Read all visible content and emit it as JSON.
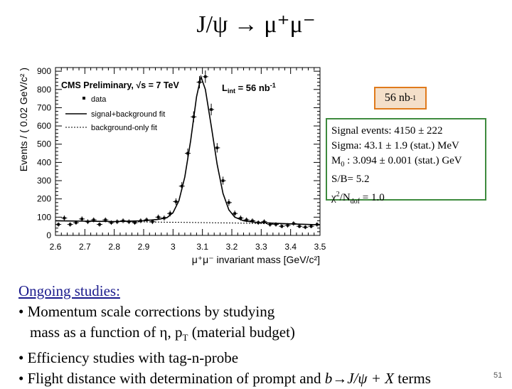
{
  "slide": {
    "title": "J/ψ → μ⁺μ⁻",
    "page_number": "51"
  },
  "chart_data": {
    "type": "scatter",
    "title": "CMS Preliminary, √s = 7 TeV",
    "luminosity_label": "L",
    "luminosity_sub": "int",
    "luminosity_value": " = 56 nb",
    "luminosity_sup": "-1",
    "xlabel": "μ⁺μ⁻ invariant mass [GeV/c²]",
    "ylabel": "Events / ( 0.02 GeV/c² )",
    "xlim": [
      2.6,
      3.5
    ],
    "ylim": [
      0,
      920
    ],
    "x_ticks": [
      2.6,
      2.7,
      2.8,
      2.9,
      3,
      3.1,
      3.2,
      3.3,
      3.4,
      3.5
    ],
    "x_tick_labels": [
      "2.6",
      "2.7",
      "2.8",
      "2.9",
      "3",
      "3.1",
      "3.2",
      "3.3",
      "3.4",
      "3.5"
    ],
    "y_ticks": [
      0,
      100,
      200,
      300,
      400,
      500,
      600,
      700,
      800,
      900
    ],
    "y_tick_labels": [
      "0",
      "100",
      "200",
      "300",
      "400",
      "500",
      "600",
      "700",
      "800",
      "900"
    ],
    "legend": {
      "placement": "top-left",
      "entries": [
        {
          "label": "data",
          "style": "marker"
        },
        {
          "label": "signal+background fit",
          "style": "solid"
        },
        {
          "label": "background-only fit",
          "style": "dotted"
        }
      ]
    },
    "series": [
      {
        "name": "data",
        "x": [
          2.61,
          2.63,
          2.65,
          2.67,
          2.69,
          2.71,
          2.73,
          2.75,
          2.77,
          2.79,
          2.81,
          2.83,
          2.85,
          2.87,
          2.89,
          2.91,
          2.93,
          2.95,
          2.97,
          2.99,
          3.01,
          3.03,
          3.05,
          3.07,
          3.09,
          3.11,
          3.13,
          3.15,
          3.17,
          3.19,
          3.21,
          3.23,
          3.25,
          3.27,
          3.29,
          3.31,
          3.33,
          3.35,
          3.37,
          3.39,
          3.41,
          3.43,
          3.45,
          3.47,
          3.49
        ],
        "y": [
          60,
          95,
          60,
          70,
          90,
          75,
          85,
          60,
          85,
          70,
          75,
          80,
          75,
          70,
          80,
          85,
          75,
          100,
          95,
          120,
          185,
          270,
          450,
          650,
          840,
          870,
          690,
          480,
          300,
          180,
          120,
          95,
          85,
          80,
          70,
          75,
          60,
          60,
          50,
          55,
          65,
          50,
          45,
          50,
          60
        ],
        "yerr": [
          12,
          14,
          12,
          12,
          14,
          13,
          13,
          12,
          13,
          12,
          13,
          13,
          13,
          12,
          13,
          13,
          13,
          14,
          14,
          16,
          18,
          22,
          26,
          30,
          34,
          34,
          32,
          26,
          22,
          18,
          16,
          14,
          13,
          13,
          12,
          13,
          12,
          12,
          11,
          12,
          12,
          11,
          11,
          11,
          12
        ]
      },
      {
        "name": "signal+background fit",
        "x": [
          2.6,
          2.7,
          2.8,
          2.9,
          2.95,
          2.98,
          3.0,
          3.02,
          3.04,
          3.06,
          3.08,
          3.095,
          3.11,
          3.13,
          3.15,
          3.17,
          3.19,
          3.21,
          3.24,
          3.28,
          3.35,
          3.42,
          3.5
        ],
        "y": [
          80,
          78,
          76,
          80,
          88,
          98,
          125,
          190,
          320,
          520,
          760,
          870,
          800,
          600,
          390,
          230,
          140,
          100,
          80,
          72,
          66,
          62,
          58
        ]
      },
      {
        "name": "background-only fit",
        "x": [
          2.6,
          2.8,
          3.0,
          3.2,
          3.4,
          3.5
        ],
        "y": [
          80,
          76,
          72,
          68,
          62,
          58
        ]
      }
    ]
  },
  "lumi_box": {
    "text": "56 nb",
    "sup": "-1",
    "border_color": "#e07a1c",
    "fill_color": "#f4dfc9"
  },
  "fit_box": {
    "border_color": "#3e8b3e",
    "signal_events": "Signal events: 4150 ± 222",
    "sigma": "Sigma: 43.1 ± 1.9 (stat.) MeV",
    "m0_label": "M",
    "m0_sub": "0",
    "m0_value": " : 3.094 ± 0.001 (stat.) GeV",
    "sb": "S/B= 5.2",
    "chi_label": "χ",
    "chi_sup": "2",
    "chi_mid": "/N",
    "chi_sub": "dof",
    "chi_value": " = 1.0"
  },
  "studies": {
    "heading": "Ongoing studies:",
    "item1_line1": "• Momentum scale corrections by studying",
    "item1_line2a": "mass as a function of η, p",
    "item1_line2_sub": "T",
    "item1_line2b": " (material budget)",
    "item2": "• Efficiency studies with tag-n-probe",
    "item3a": "• Flight distance with determination of prompt and ",
    "item3_formula": "b→J/ψ + X",
    "item3b": " terms"
  }
}
